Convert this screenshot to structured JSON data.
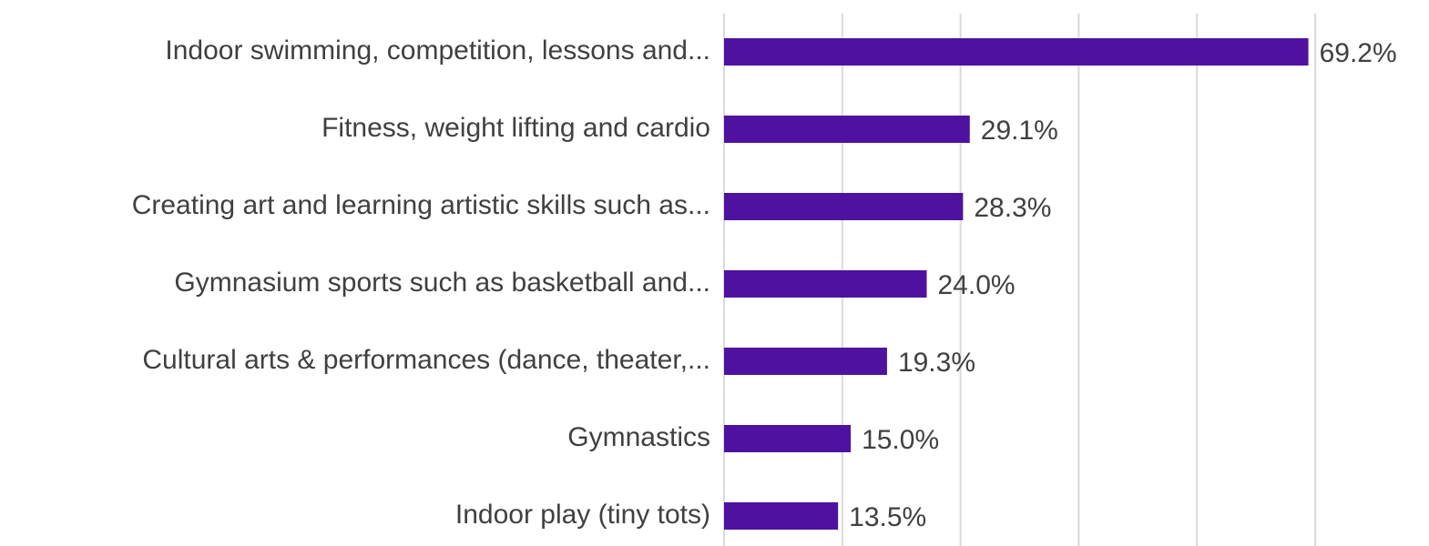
{
  "chart_data": {
    "type": "hbar",
    "categories": [
      "Indoor swimming, competition, lessons and...",
      "Fitness, weight lifting and cardio",
      "Creating art and learning artistic skills such as...",
      "Gymnasium sports such as basketball and...",
      "Cultural arts & performances (dance, theater,...",
      "Gymnastics",
      "Indoor play (tiny tots)"
    ],
    "values": [
      69.2,
      29.1,
      28.3,
      24.0,
      19.3,
      15.0,
      13.5
    ],
    "value_labels": [
      "69.2%",
      "29.1%",
      "28.3%",
      "24.0%",
      "19.3%",
      "15.0%",
      "13.5%"
    ],
    "color": "#4f12a0",
    "xlim": [
      0,
      70
    ],
    "xticks": [
      0,
      14,
      28,
      42,
      56,
      70
    ],
    "grid": true
  }
}
